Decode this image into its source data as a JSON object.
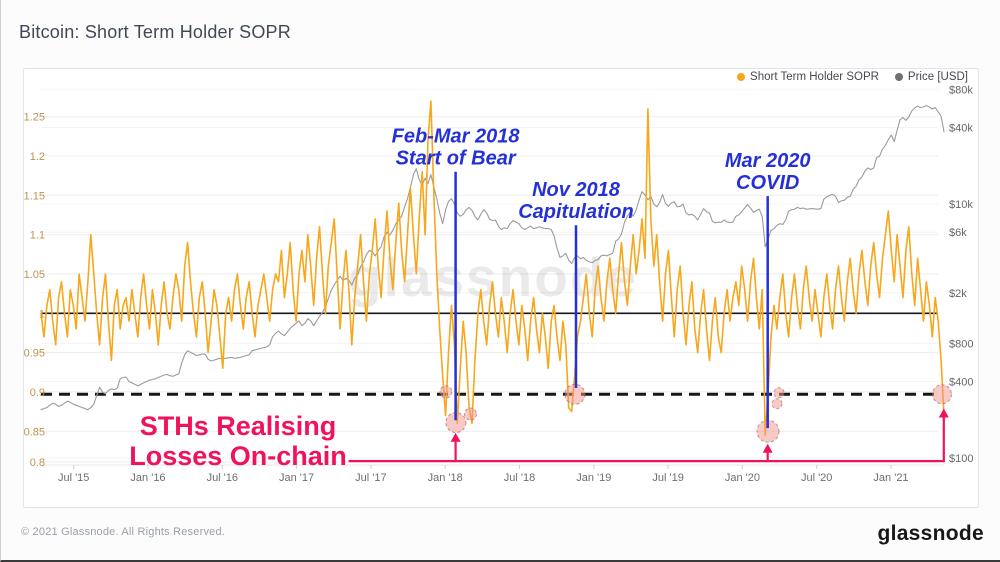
{
  "header": {
    "title": "Bitcoin: Short Term Holder SOPR"
  },
  "legend": {
    "sopr_label": "Short Term Holder SOPR",
    "price_label": "Price [USD]"
  },
  "watermark": "glassnode",
  "footer": {
    "copyright": "© 2021 Glassnode. All Rights Reserved.",
    "brand": "glassnode"
  },
  "colors": {
    "sopr": "#F7A71B",
    "price": "#9b9b9b",
    "legend_price_dot": "#6f6f6f",
    "blue_annotation": "#2531d6",
    "pink_annotation": "#F0135C",
    "circle_fill": "rgba(242,150,140,0.5)",
    "circle_stroke": "rgba(170,95,85,0.65)",
    "left_tick": "#bd9350",
    "right_tick": "#64676d",
    "x_tick": "#6e6e6e",
    "gridline": "#ececec",
    "gridline_faint": "#f3f3f4",
    "reference_line": "#15171a",
    "watermark_color": "#000000"
  },
  "chart_data": {
    "type": "line",
    "title": "Bitcoin: Short Term Holder SOPR",
    "xlabel": "",
    "ylabel_left": "Short Term Holder SOPR",
    "ylabel_right": "Price [USD]",
    "left_ylim": [
      0.8,
      1.28
    ],
    "right_ylim_log": [
      100,
      80000
    ],
    "t_start": 2015.28,
    "t_step": 0.01973,
    "x_axis": {
      "ticks": [
        {
          "t": 2015.5,
          "label": "Jul '15"
        },
        {
          "t": 2016.0,
          "label": "Jan '16"
        },
        {
          "t": 2016.5,
          "label": "Jul '16"
        },
        {
          "t": 2017.0,
          "label": "Jan '17"
        },
        {
          "t": 2017.5,
          "label": "Jul '17"
        },
        {
          "t": 2018.0,
          "label": "Jan '18"
        },
        {
          "t": 2018.5,
          "label": "Jul '18"
        },
        {
          "t": 2019.0,
          "label": "Jan '19"
        },
        {
          "t": 2019.5,
          "label": "Jul '19"
        },
        {
          "t": 2020.0,
          "label": "Jan '20"
        },
        {
          "t": 2020.5,
          "label": "Jul '20"
        },
        {
          "t": 2021.0,
          "label": "Jan '21"
        }
      ]
    },
    "left_axis": {
      "ticks": [
        {
          "v": 1.25,
          "label": "1.25"
        },
        {
          "v": 1.2,
          "label": "1.2"
        },
        {
          "v": 1.15,
          "label": "1.15"
        },
        {
          "v": 1.1,
          "label": "1.1"
        },
        {
          "v": 1.05,
          "label": "1.05"
        },
        {
          "v": 1.0,
          "label": "1"
        },
        {
          "v": 0.95,
          "label": "0.95"
        },
        {
          "v": 0.9,
          "label": "0.9"
        },
        {
          "v": 0.85,
          "label": "0.85"
        },
        {
          "v": 0.8,
          "label": "0.8"
        }
      ]
    },
    "right_axis": {
      "ticks": [
        {
          "p": 80000,
          "label": "$80k"
        },
        {
          "p": 40000,
          "label": "$40k"
        },
        {
          "p": 10000,
          "label": "$10k"
        },
        {
          "p": 6000,
          "label": "$6k"
        },
        {
          "p": 2000,
          "label": "$2k"
        },
        {
          "p": 800,
          "label": "$800"
        },
        {
          "p": 400,
          "label": "$400"
        },
        {
          "p": 100,
          "label": "$100"
        }
      ]
    },
    "reference_lines": [
      {
        "v": 1.0,
        "style": "solid"
      },
      {
        "v": 0.897,
        "style": "dashed"
      }
    ],
    "series": [
      {
        "name": "Price [USD]",
        "axis": "right",
        "width": 1.1,
        "values": [
          240,
          245,
          250,
          260,
          270,
          265,
          255,
          260,
          270,
          280,
          275,
          265,
          260,
          255,
          250,
          245,
          240,
          250,
          265,
          310,
          360,
          330,
          320,
          340,
          350,
          345,
          355,
          420,
          430,
          434,
          400,
          390,
          380,
          370,
          380,
          390,
          400,
          410,
          415,
          420,
          430,
          440,
          450,
          455,
          445,
          440,
          450,
          460,
          560,
          650,
          700,
          680,
          660,
          640,
          650,
          660,
          655,
          600,
          580,
          590,
          600,
          610,
          605,
          610,
          615,
          620,
          610,
          615,
          620,
          630,
          640,
          650,
          700,
          710,
          720,
          730,
          740,
          750,
          780,
          900,
          960,
          1000,
          950,
          920,
          980,
          1050,
          1100,
          1150,
          1200,
          1100,
          1150,
          1250,
          1200,
          1100,
          1200,
          1300,
          1400,
          1550,
          1800,
          2100,
          2300,
          2500,
          2700,
          2500,
          2600,
          2500,
          2300,
          2600,
          2800,
          3200,
          3500,
          4000,
          4300,
          4200,
          3900,
          4300,
          4600,
          5500,
          6000,
          5700,
          6200,
          7000,
          7500,
          8000,
          9500,
          11000,
          13500,
          17000,
          19000,
          15500,
          14000,
          16000,
          14500,
          17000,
          13500,
          11000,
          8500,
          7000,
          9000,
          10500,
          11000,
          10000,
          8500,
          8000,
          8300,
          9000,
          9400,
          8900,
          8000,
          7500,
          8300,
          9000,
          8500,
          7600,
          7400,
          7500,
          6700,
          6300,
          6500,
          6400,
          7000,
          7400,
          7200,
          7000,
          6500,
          6300,
          6500,
          6700,
          6400,
          6500,
          6600,
          6500,
          6400,
          6400,
          6300,
          5600,
          4500,
          3800,
          3900,
          4100,
          3600,
          3400,
          3800,
          3900,
          3700,
          3800,
          3600,
          3500,
          3450,
          3600,
          3650,
          3900,
          3950,
          3900,
          4000,
          4100,
          5100,
          5300,
          5800,
          7200,
          8000,
          8700,
          8000,
          9000,
          10800,
          12500,
          11800,
          10800,
          11500,
          10000,
          9500,
          10300,
          11900,
          10100,
          9600,
          10200,
          10400,
          9500,
          9600,
          10000,
          8500,
          8200,
          8300,
          8000,
          7500,
          8300,
          9200,
          8700,
          8500,
          7300,
          7100,
          7200,
          7150,
          7500,
          7200,
          7150,
          7200,
          8000,
          8200,
          8700,
          9300,
          9900,
          9300,
          8600,
          8900,
          9100,
          8000,
          4600,
          5300,
          6200,
          6400,
          6800,
          7000,
          6900,
          7500,
          8800,
          9000,
          9100,
          9400,
          9200,
          9300,
          9100,
          9150,
          9200,
          9150,
          9100,
          9200,
          10900,
          11400,
          11700,
          11900,
          11500,
          10300,
          10600,
          10700,
          11300,
          11500,
          13000,
          13800,
          15500,
          16300,
          18200,
          19200,
          18700,
          19200,
          23200,
          23800,
          27000,
          29000,
          32000,
          35000,
          31000,
          38000,
          46000,
          48000,
          45500,
          48500,
          54000,
          57000,
          59000,
          57500,
          58000,
          59500,
          58000,
          56000,
          57500,
          53000,
          49000,
          37000
        ]
      },
      {
        "name": "Short Term Holder SOPR",
        "axis": "left",
        "width": 1.6,
        "values": [
          1.0,
          0.97,
          1.01,
          1.03,
          0.99,
          0.96,
          1.02,
          1.04,
          1.0,
          0.97,
          1.03,
          1.01,
          0.98,
          1.05,
          1.02,
          0.99,
          1.04,
          1.1,
          1.05,
          1.0,
          0.96,
          1.02,
          1.05,
          0.99,
          0.94,
          1.01,
          1.03,
          0.98,
          1.01,
          1.02,
          0.99,
          1.03,
          1.0,
          0.97,
          1.02,
          1.05,
          1.01,
          0.98,
          1.03,
          1.0,
          0.96,
          1.01,
          1.04,
          1.0,
          0.98,
          1.02,
          1.05,
          1.03,
          0.99,
          1.06,
          1.09,
          1.04,
          1.0,
          0.97,
          1.02,
          1.04,
          1.0,
          0.95,
          0.99,
          1.03,
          1.01,
          0.97,
          0.93,
          1.0,
          1.02,
          0.99,
          1.03,
          1.05,
          1.01,
          0.98,
          1.02,
          1.04,
          1.0,
          0.97,
          1.01,
          1.03,
          1.05,
          1.02,
          0.99,
          1.03,
          1.05,
          1.04,
          1.08,
          1.02,
          1.05,
          1.09,
          1.03,
          0.99,
          1.05,
          1.08,
          1.04,
          1.1,
          1.06,
          1.01,
          1.07,
          1.11,
          1.05,
          1.0,
          1.06,
          1.09,
          1.12,
          1.05,
          0.98,
          1.04,
          1.08,
          1.03,
          0.96,
          1.02,
          1.06,
          1.1,
          1.04,
          0.99,
          1.05,
          1.08,
          1.12,
          1.06,
          1.02,
          1.08,
          1.13,
          1.07,
          1.03,
          1.09,
          1.14,
          1.08,
          1.04,
          1.1,
          1.16,
          1.1,
          1.05,
          1.12,
          1.18,
          1.1,
          1.22,
          1.27,
          1.15,
          1.05,
          0.98,
          0.92,
          0.87,
          0.95,
          1.01,
          0.96,
          0.86,
          0.93,
          0.99,
          0.95,
          0.88,
          0.86,
          0.94,
          1.0,
          1.03,
          0.99,
          0.96,
          1.01,
          1.04,
          1.0,
          0.97,
          1.02,
          0.99,
          0.95,
          1.0,
          1.03,
          0.99,
          0.96,
          1.01,
          0.98,
          0.94,
          0.99,
          1.02,
          0.98,
          0.95,
          1.0,
          0.97,
          0.93,
          0.99,
          1.01,
          0.97,
          0.94,
          0.99,
          0.96,
          0.88,
          0.875,
          0.92,
          0.97,
          0.99,
          1.02,
          1.05,
          1.0,
          0.97,
          1.03,
          1.06,
          1.02,
          0.99,
          1.04,
          1.07,
          1.03,
          1.0,
          1.05,
          1.09,
          1.04,
          1.01,
          1.06,
          1.1,
          1.05,
          1.08,
          1.12,
          1.07,
          1.26,
          1.12,
          1.06,
          1.1,
          1.04,
          0.99,
          1.05,
          1.08,
          1.02,
          0.97,
          1.03,
          1.06,
          1.0,
          0.96,
          1.01,
          1.04,
          0.98,
          0.95,
          1.0,
          1.03,
          0.98,
          0.94,
          0.99,
          1.02,
          0.97,
          0.95,
          1.0,
          1.03,
          0.99,
          1.02,
          1.04,
          1.01,
          1.06,
          1.03,
          0.99,
          1.04,
          1.07,
          1.02,
          0.98,
          1.03,
          0.845,
          0.9,
          0.97,
          1.01,
          0.98,
          1.02,
          1.05,
          1.0,
          0.97,
          1.02,
          1.05,
          1.01,
          0.98,
          1.03,
          1.06,
          1.02,
          0.99,
          1.03,
          1.0,
          0.97,
          1.02,
          1.05,
          1.01,
          0.98,
          1.03,
          1.06,
          1.02,
          0.99,
          1.04,
          1.07,
          1.03,
          1.0,
          1.05,
          1.08,
          1.04,
          1.01,
          1.06,
          1.09,
          1.05,
          1.02,
          1.07,
          1.1,
          1.13,
          1.08,
          1.04,
          1.1,
          1.06,
          1.02,
          1.08,
          1.11,
          1.05,
          1.01,
          1.07,
          1.03,
          0.99,
          1.04,
          1.01,
          0.97,
          1.02,
          0.99,
          0.94,
          0.87
        ]
      }
    ],
    "annotations": {
      "blue": [
        {
          "lines": [
            "Feb-Mar 2018",
            "Start of Bear"
          ],
          "t": 2018.07,
          "v_top": 1.18,
          "v_bottom": 0.864
        },
        {
          "lines": [
            "Nov 2018",
            "Capitulation"
          ],
          "t": 2018.88,
          "v_top": 1.112,
          "v_bottom": 0.905
        },
        {
          "lines": [
            "Mar 2020",
            "COVID"
          ],
          "t": 2020.17,
          "v_top": 1.149,
          "v_bottom": 0.854
        }
      ],
      "pink_text": [
        "STHs Realising",
        "Losses On-chain"
      ],
      "pink_line": {
        "v": 0.812,
        "t_start": 2017.35,
        "t_end": 2021.355,
        "arrows": [
          {
            "t": 2018.07,
            "v_tip": 0.848
          },
          {
            "t": 2020.17,
            "v_tip": 0.834
          }
        ],
        "end_arrow_v_tip": 0.879
      },
      "circles": [
        {
          "t": 2018.072,
          "v": 0.861,
          "r": 10
        },
        {
          "t": 2018.17,
          "v": 0.872,
          "r": 6
        },
        {
          "t": 2018.005,
          "v": 0.9,
          "r": 6
        },
        {
          "t": 2018.873,
          "v": 0.897,
          "r": 10
        },
        {
          "t": 2020.172,
          "v": 0.85,
          "r": 11
        },
        {
          "t": 2020.233,
          "v": 0.885,
          "r": 5
        },
        {
          "t": 2020.246,
          "v": 0.899,
          "r": 5
        },
        {
          "t": 2021.343,
          "v": 0.897,
          "r": 9.5
        }
      ]
    }
  }
}
